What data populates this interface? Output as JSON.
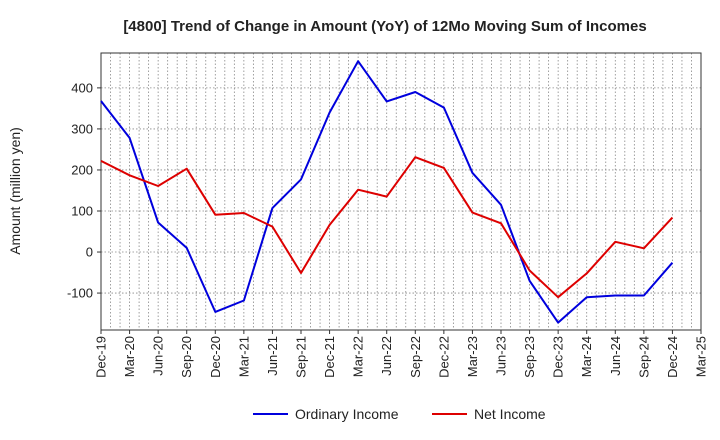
{
  "chart_data": {
    "type": "line",
    "title": "[4800]  Trend of Change in Amount (YoY) of 12Mo Moving Sum of Incomes",
    "xlabel": "",
    "ylabel": "Amount (million yen)",
    "ylim": [
      -190,
      485
    ],
    "yticks": [
      -100,
      0,
      100,
      200,
      300,
      400
    ],
    "ytick_labels": [
      "-100",
      "0",
      "100",
      "200",
      "300",
      "400"
    ],
    "categories": [
      "Dec-19",
      "Mar-20",
      "Jun-20",
      "Sep-20",
      "Dec-20",
      "Mar-21",
      "Jun-21",
      "Sep-21",
      "Dec-21",
      "Mar-22",
      "Jun-22",
      "Sep-22",
      "Dec-22",
      "Mar-23",
      "Jun-23",
      "Sep-23",
      "Dec-23",
      "Mar-24",
      "Jun-24",
      "Sep-24",
      "Dec-24",
      "Mar-25"
    ],
    "grid": true,
    "legend": "bottom-center",
    "series": [
      {
        "name": "Ordinary Income",
        "color": "#0000dd",
        "values": [
          368,
          278,
          72,
          10,
          -146,
          -118,
          107,
          177,
          340,
          465,
          367,
          390,
          352,
          193,
          115,
          -70,
          -172,
          -110,
          -106,
          -106,
          -26,
          null
        ]
      },
      {
        "name": "Net Income",
        "color": "#dd0000",
        "values": [
          222,
          187,
          161,
          203,
          91,
          95,
          62,
          -51,
          66,
          152,
          135,
          231,
          205,
          96,
          70,
          -45,
          -110,
          -52,
          25,
          9,
          84,
          null
        ]
      }
    ]
  }
}
